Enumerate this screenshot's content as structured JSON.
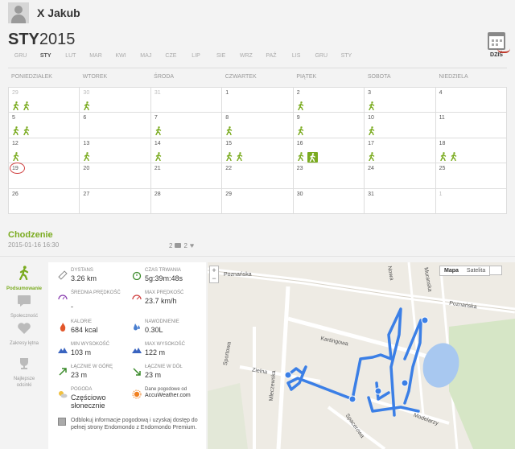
{
  "user": {
    "name": "X Jakub"
  },
  "calendar": {
    "month_bold": "STY",
    "year": "2015",
    "today_label": "DZIŚ",
    "months": [
      "GRU",
      "STY",
      "LUT",
      "MAR",
      "KWI",
      "MAJ",
      "CZE",
      "LIP",
      "SIE",
      "WRZ",
      "PAŹ",
      "LIS",
      "GRU",
      "STY"
    ],
    "active_month_index": 1,
    "weekdays": [
      "PONIEDZIAŁEK",
      "WTOREK",
      "ŚRODA",
      "CZWARTEK",
      "PIĄTEK",
      "SOBOTA",
      "NIEDZIELA"
    ],
    "cells": [
      {
        "day": "29",
        "other": true,
        "acts": 2
      },
      {
        "day": "30",
        "other": true,
        "acts": 1
      },
      {
        "day": "31",
        "other": true,
        "acts": 0
      },
      {
        "day": "1",
        "acts": 0
      },
      {
        "day": "2",
        "acts": 1
      },
      {
        "day": "3",
        "acts": 1
      },
      {
        "day": "4",
        "acts": 0
      },
      {
        "day": "5",
        "acts": 2
      },
      {
        "day": "6",
        "acts": 0
      },
      {
        "day": "7",
        "acts": 1
      },
      {
        "day": "8",
        "acts": 1
      },
      {
        "day": "9",
        "acts": 1
      },
      {
        "day": "10",
        "acts": 1
      },
      {
        "day": "11",
        "acts": 0
      },
      {
        "day": "12",
        "acts": 1
      },
      {
        "day": "13",
        "acts": 1
      },
      {
        "day": "14",
        "acts": 1
      },
      {
        "day": "15",
        "acts": 2
      },
      {
        "day": "16",
        "acts": 1,
        "boxed": 1
      },
      {
        "day": "17",
        "acts": 1
      },
      {
        "day": "18",
        "acts": 2
      },
      {
        "day": "19",
        "acts": 0,
        "today": true
      },
      {
        "day": "20",
        "acts": 0
      },
      {
        "day": "21",
        "acts": 0
      },
      {
        "day": "22",
        "acts": 0
      },
      {
        "day": "23",
        "acts": 0
      },
      {
        "day": "24",
        "acts": 0
      },
      {
        "day": "25",
        "acts": 0
      },
      {
        "day": "26",
        "acts": 0
      },
      {
        "day": "27",
        "acts": 0
      },
      {
        "day": "28",
        "acts": 0
      },
      {
        "day": "29",
        "acts": 0
      },
      {
        "day": "30",
        "acts": 0
      },
      {
        "day": "31",
        "acts": 0
      },
      {
        "day": "1",
        "other": true,
        "acts": 0
      }
    ]
  },
  "workout": {
    "name": "Chodzenie",
    "datetime": "2015-01-16 16:30",
    "comments": "2",
    "likes": "2"
  },
  "sidenav": {
    "summary": "Podsumowanie",
    "community": "Społeczność",
    "laps": "Zakresy łętna",
    "best": "Najlepsze odcinki"
  },
  "stats": {
    "distance": {
      "label": "DYSTANS",
      "value": "3.26 km"
    },
    "duration": {
      "label": "CZAS TRWANIA",
      "value": "5g:39m:48s"
    },
    "avg_speed": {
      "label": "ŚREDNIA PRĘDKOŚĆ",
      "value": "-"
    },
    "max_speed": {
      "label": "MAX PRĘDKOŚĆ",
      "value": "23.7 km/h"
    },
    "calories": {
      "label": "KALORIE",
      "value": "684 kcal"
    },
    "hydration": {
      "label": "NAWODNIENIE",
      "value": "0.30L"
    },
    "min_alt": {
      "label": "MIN WYSOKOŚĆ",
      "value": "103 m"
    },
    "max_alt": {
      "label": "MAX WYSOKOŚĆ",
      "value": "122 m"
    },
    "ascent": {
      "label": "ŁĄCZNIE W GÓRĘ",
      "value": "23 m"
    },
    "descent": {
      "label": "ŁĄCZNIE W DÓŁ",
      "value": "23 m"
    },
    "weather": {
      "label": "POGODA",
      "value": "Częściowo słonecznie"
    },
    "weather_source": {
      "label": "Dane pogodowe od",
      "value": "AccuWeather.com"
    },
    "promo": "Odblokuj informacje pogodową i uzyskaj dostęp do pełnej strony Endomondo z Endomondo Premium."
  },
  "map": {
    "zoom_in": "+",
    "zoom_out": "−",
    "type_map": "Mapa",
    "type_satellite": "Satelita",
    "streets": [
      "Poznańska",
      "Poznańska",
      "Kartingowa",
      "Zielna",
      "Sportowa",
      "Mleczewska",
      "Spacerowa",
      "Modelarzy",
      "Nowa",
      "Muranska"
    ],
    "route_color": "#3b7fe6",
    "lake_color": "#a8c8f0"
  },
  "colors": {
    "accent": "#7aab1f",
    "today": "#d04040"
  }
}
